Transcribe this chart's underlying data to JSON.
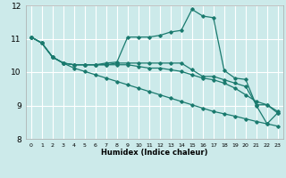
{
  "xlabel": "Humidex (Indice chaleur)",
  "xlim": [
    -0.5,
    23.5
  ],
  "ylim": [
    8,
    12
  ],
  "yticks": [
    8,
    9,
    10,
    11,
    12
  ],
  "xticks": [
    0,
    1,
    2,
    3,
    4,
    5,
    6,
    7,
    8,
    9,
    10,
    11,
    12,
    13,
    14,
    15,
    16,
    17,
    18,
    19,
    20,
    21,
    22,
    23
  ],
  "bg_color": "#cceaea",
  "grid_color": "#ffffff",
  "line_color": "#1a7a6e",
  "lines": [
    [
      11.05,
      10.87,
      10.45,
      10.27,
      10.22,
      10.22,
      10.22,
      10.27,
      10.3,
      11.05,
      11.05,
      11.05,
      11.1,
      11.2,
      11.25,
      11.88,
      11.68,
      11.63,
      10.05,
      9.82,
      9.78,
      9.0,
      8.45,
      8.78
    ],
    [
      11.05,
      10.87,
      10.45,
      10.27,
      10.22,
      10.22,
      10.22,
      10.22,
      10.27,
      10.27,
      10.27,
      10.27,
      10.27,
      10.27,
      10.27,
      10.07,
      9.87,
      9.87,
      9.77,
      9.67,
      9.57,
      9.02,
      9.02,
      8.77
    ],
    [
      11.05,
      10.87,
      10.45,
      10.27,
      10.22,
      10.22,
      10.22,
      10.22,
      10.22,
      10.22,
      10.17,
      10.12,
      10.12,
      10.07,
      10.02,
      9.92,
      9.82,
      9.77,
      9.67,
      9.52,
      9.32,
      9.12,
      9.02,
      8.82
    ],
    [
      11.05,
      10.87,
      10.45,
      10.27,
      10.12,
      10.02,
      9.92,
      9.82,
      9.72,
      9.62,
      9.52,
      9.42,
      9.32,
      9.22,
      9.12,
      9.02,
      8.92,
      8.82,
      8.75,
      8.68,
      8.6,
      8.52,
      8.45,
      8.38
    ]
  ]
}
